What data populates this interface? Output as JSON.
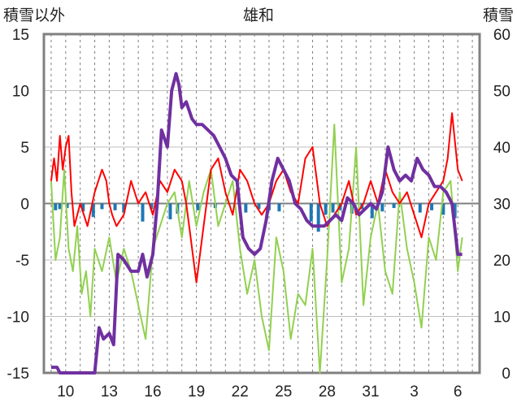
{
  "chart_data": {
    "type": "line",
    "title": "雄和",
    "ylabel_left": "積雪以外",
    "ylabel_right": "積雪",
    "xlim": [
      8.5,
      7.5
    ],
    "ylim_left": [
      -15,
      15
    ],
    "ylim_right": [
      0,
      60
    ],
    "left_ticks": [
      "15",
      "10",
      "5",
      "0",
      "-5",
      "-10",
      "-15"
    ],
    "right_ticks": [
      "60",
      "50",
      "40",
      "30",
      "20",
      "10",
      "0"
    ],
    "x_ticks": [
      "10",
      "13",
      "16",
      "19",
      "22",
      "25",
      "28",
      "31",
      "3",
      "6"
    ],
    "grid": true,
    "colors": {
      "temperature": "#ff0000",
      "precipitation": "#1f77b4",
      "snow_change": "#92d050",
      "snow_depth": "#7030a0"
    },
    "series": [
      {
        "key": "temperature",
        "axis": "left",
        "x": [
          9.0,
          9.2,
          9.4,
          9.6,
          9.8,
          10.0,
          10.2,
          10.4,
          10.6,
          10.8,
          11.0,
          11.5,
          12.0,
          12.5,
          12.8,
          13.0,
          13.2,
          13.5,
          14.0,
          14.5,
          15.0,
          15.5,
          16.0,
          16.5,
          17.0,
          17.5,
          18.0,
          18.3,
          18.6,
          19.0,
          19.5,
          20.0,
          20.5,
          21.0,
          21.5,
          22.0,
          22.5,
          23.0,
          23.5,
          24.0,
          24.5,
          25.0,
          25.5,
          26.0,
          26.5,
          27.0,
          27.5,
          28.0,
          28.5,
          29.0,
          29.5,
          30.0,
          30.5,
          31.0,
          31.5,
          32.0,
          32.5,
          33.0,
          33.5,
          34.0,
          34.5,
          35.0,
          35.5,
          36.0,
          36.3,
          36.6,
          37.0,
          37.3
        ],
        "y": [
          2,
          4,
          2,
          6,
          3,
          5,
          6,
          1,
          -2,
          -1,
          0,
          -2,
          1,
          3,
          2,
          0,
          -1,
          -2,
          -1,
          2,
          0,
          1,
          -1,
          2,
          1,
          3,
          2,
          0,
          -3,
          -7,
          -2,
          3,
          4,
          1,
          -1,
          3,
          2,
          0,
          -1,
          0,
          2,
          3,
          1,
          0,
          4,
          5,
          0,
          -2,
          -1,
          0,
          2,
          -1,
          0,
          2,
          0,
          3,
          1,
          0,
          1,
          -1,
          -3,
          0,
          1,
          2,
          4,
          8,
          3,
          2
        ]
      },
      {
        "key": "snow_change",
        "axis": "left",
        "x": [
          9.0,
          9.3,
          9.6,
          9.9,
          10.2,
          10.5,
          10.8,
          11.1,
          11.4,
          11.7,
          12.0,
          12.5,
          13.0,
          13.5,
          14.0,
          14.5,
          15.0,
          15.5,
          16.0,
          16.5,
          17.0,
          17.5,
          18.0,
          18.5,
          19.0,
          19.5,
          20.0,
          20.5,
          21.0,
          21.5,
          22.0,
          22.5,
          23.0,
          23.5,
          24.0,
          24.5,
          25.0,
          25.5,
          26.0,
          26.5,
          27.0,
          27.5,
          28.0,
          28.5,
          29.0,
          29.5,
          30.0,
          30.5,
          31.0,
          31.5,
          32.0,
          32.5,
          33.0,
          33.5,
          34.0,
          34.5,
          35.0,
          35.5,
          36.0,
          36.5,
          37.0,
          37.3
        ],
        "y": [
          2,
          -5,
          -3,
          3,
          -4,
          -6,
          -2,
          -8,
          -6,
          -10,
          -4,
          -6,
          -3,
          -7,
          -4,
          -6,
          -9,
          -12,
          -4,
          -2,
          0,
          1,
          -3,
          2,
          -2,
          1,
          3,
          -2,
          0,
          2,
          -4,
          -8,
          -5,
          -10,
          -13,
          -3,
          -6,
          -12,
          -8,
          -9,
          -4,
          -15,
          -5,
          7,
          -7,
          -4,
          5,
          -9,
          -3,
          0,
          -6,
          -8,
          1,
          -4,
          -7,
          -11,
          -3,
          -5,
          1,
          2,
          -6,
          -3
        ]
      },
      {
        "key": "snow_depth",
        "axis": "right",
        "x": [
          9.0,
          9.4,
          9.6,
          10.0,
          10.5,
          11.0,
          11.5,
          12.0,
          12.3,
          12.6,
          13.0,
          13.3,
          13.6,
          14.0,
          14.5,
          15.0,
          15.3,
          15.6,
          16.0,
          16.3,
          16.6,
          17.0,
          17.3,
          17.6,
          17.8,
          18.0,
          18.3,
          18.7,
          19.0,
          19.4,
          19.8,
          20.2,
          20.6,
          21.0,
          21.4,
          21.8,
          22.2,
          22.6,
          23.0,
          23.4,
          23.8,
          24.2,
          24.6,
          25.0,
          25.4,
          25.8,
          26.2,
          26.6,
          27.0,
          27.4,
          27.8,
          28.2,
          28.6,
          29.0,
          29.4,
          29.8,
          30.2,
          30.6,
          31.0,
          31.4,
          31.8,
          32.2,
          32.6,
          33.0,
          33.4,
          33.8,
          34.2,
          34.6,
          35.0,
          35.4,
          35.8,
          36.2,
          36.6,
          37.0,
          37.3
        ],
        "y": [
          1,
          1,
          0,
          0,
          0,
          0,
          0,
          0,
          8,
          6,
          7,
          5,
          21,
          20,
          18,
          18,
          21,
          17,
          21,
          30,
          43,
          40,
          50,
          53,
          51,
          47,
          48,
          45,
          44,
          44,
          43,
          42,
          40,
          38,
          35,
          34,
          24,
          22,
          21,
          22,
          27,
          34,
          38,
          36,
          34,
          30,
          29,
          27,
          26,
          26,
          26,
          27,
          28,
          27,
          31,
          30,
          28,
          29,
          30,
          29,
          32,
          40,
          36,
          34,
          35,
          34,
          38,
          36,
          35,
          33,
          33,
          32,
          30,
          21,
          21
        ]
      },
      {
        "key": "precipitation",
        "axis": "left",
        "type": "bar",
        "x": [
          9.3,
          9.6,
          10.1,
          11.2,
          11.9,
          12.5,
          13.4,
          14.0,
          15.3,
          15.9,
          17.2,
          17.7,
          19.1,
          20.3,
          22.4,
          23.3,
          24.0,
          24.7,
          26.9,
          27.4,
          27.9,
          28.4,
          28.9,
          29.7,
          30.4,
          31.1,
          31.8,
          32.6,
          34.4,
          35.2,
          36.0,
          36.8
        ],
        "y": [
          -0.6,
          -0.5,
          -0.4,
          -0.7,
          -1.2,
          -0.5,
          -0.6,
          -0.8,
          -1.6,
          -0.5,
          -1.4,
          -0.9,
          -0.6,
          -0.4,
          -0.8,
          -0.5,
          -0.6,
          -0.7,
          -1.6,
          -2.5,
          -1.0,
          -0.8,
          -0.6,
          -0.9,
          -0.5,
          -1.3,
          -0.7,
          -0.4,
          -0.8,
          -0.6,
          -1.0,
          -1.3
        ]
      }
    ]
  }
}
